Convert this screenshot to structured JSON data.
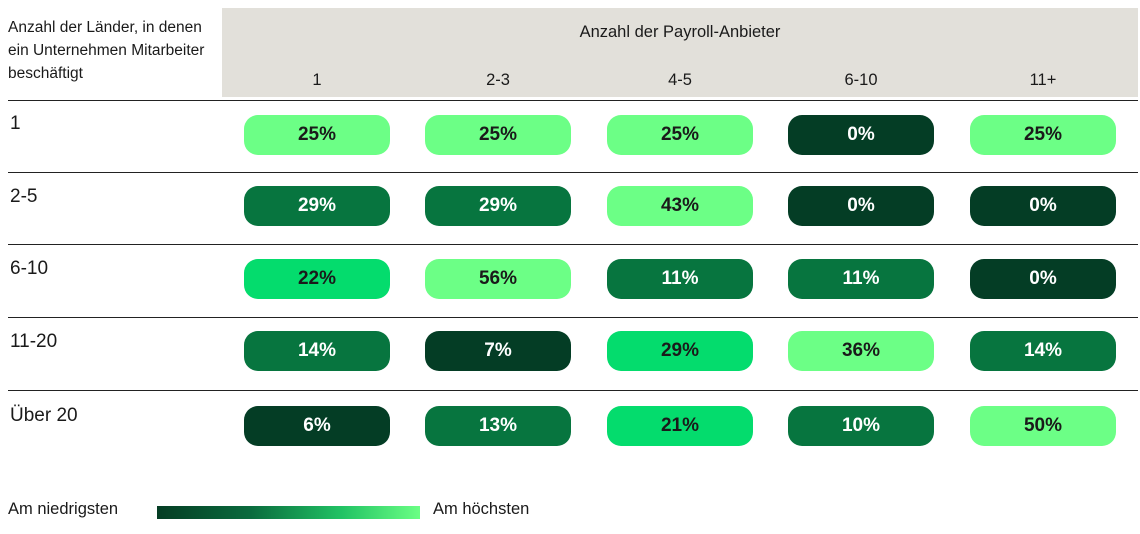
{
  "chart_data": {
    "type": "heatmap",
    "row_axis_label": "Anzahl der Länder, in denen ein Unternehmen Mitarbeiter beschäftigt",
    "col_axis_label": "Anzahl der Payroll-Anbieter",
    "columns": [
      "1",
      "2-3",
      "4-5",
      "6-10",
      "11+"
    ],
    "rows": [
      {
        "label": "1",
        "values": [
          25,
          25,
          25,
          0,
          25
        ]
      },
      {
        "label": "2-5",
        "values": [
          29,
          29,
          43,
          0,
          0
        ]
      },
      {
        "label": "6-10",
        "values": [
          22,
          56,
          11,
          11,
          0
        ]
      },
      {
        "label": "11-20",
        "values": [
          14,
          7,
          29,
          36,
          14
        ]
      },
      {
        "label": "Über 20",
        "values": [
          6,
          13,
          21,
          10,
          50
        ]
      }
    ],
    "value_suffix": "%",
    "legend": {
      "low_label": "Am niedrigsten",
      "high_label": "Am höchsten"
    }
  },
  "colors": {
    "level_0_darkest": "#043d25",
    "level_1": "#07753f",
    "level_2_bright": "#04dc6d",
    "level_3_lightest": "#6cff86",
    "header_band": "#e2e0da",
    "text_light": "#ffffff",
    "text_dark": "#1a1a1a"
  },
  "cell_color_levels": [
    [
      3,
      3,
      3,
      0,
      3
    ],
    [
      1,
      1,
      3,
      0,
      0
    ],
    [
      2,
      3,
      1,
      1,
      0
    ],
    [
      1,
      0,
      2,
      3,
      1
    ],
    [
      0,
      1,
      2,
      1,
      3
    ]
  ]
}
